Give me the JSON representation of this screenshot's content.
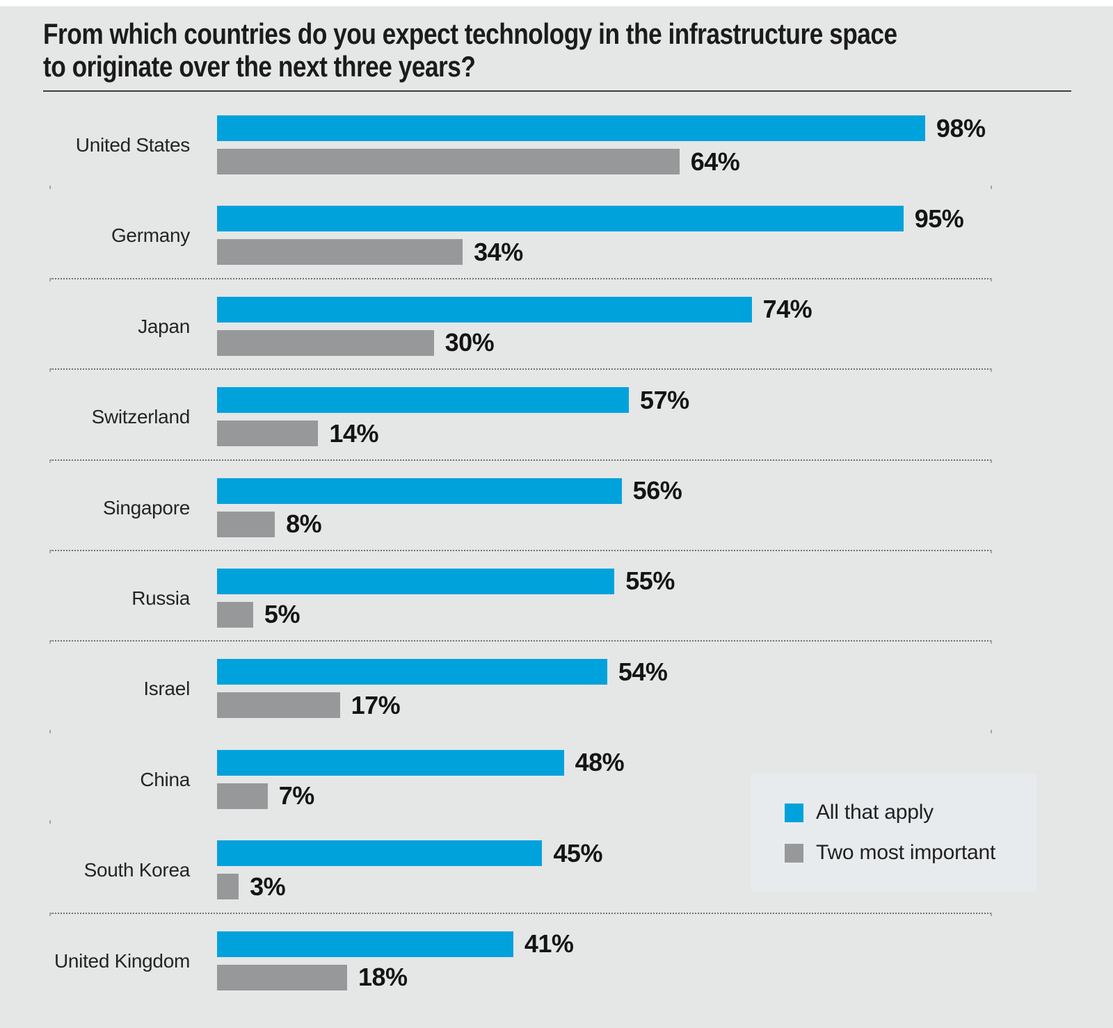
{
  "title_lines": [
    "From which countries do you expect technology in the infrastructure space",
    "to originate over the next three years?"
  ],
  "chart_data": {
    "type": "bar",
    "orientation": "horizontal",
    "title": "From which countries do you expect technology in the infrastructure space to originate over the next three years?",
    "categories": [
      "United States",
      "Germany",
      "Japan",
      "Switzerland",
      "Singapore",
      "Russia",
      "Israel",
      "China",
      "South Korea",
      "United Kingdom"
    ],
    "series": [
      {
        "name": "All that apply",
        "color": "#00a2dc",
        "values": [
          98,
          95,
          74,
          57,
          56,
          55,
          54,
          48,
          45,
          41
        ],
        "labels": [
          "98%",
          "95%",
          "74%",
          "57%",
          "56%",
          "55%",
          "54%",
          "48%",
          "45%",
          "41%"
        ]
      },
      {
        "name": "Two most important",
        "color": "#97989a",
        "values": [
          64,
          34,
          30,
          14,
          8,
          5,
          17,
          7,
          3,
          18
        ],
        "labels": [
          "64%",
          "34%",
          "30%",
          "14%",
          "8%",
          "5%",
          "17%",
          "7%",
          "3%",
          "18%"
        ]
      }
    ],
    "value_suffix": "%",
    "xlim": [
      0,
      100
    ],
    "grid": false,
    "legend_position": "bottom-right",
    "background_color": "#e5e6e6"
  },
  "legend": {
    "items": [
      {
        "label": "All that apply",
        "color": "#00a2dc"
      },
      {
        "label": "Two most important",
        "color": "#97989a"
      }
    ]
  }
}
